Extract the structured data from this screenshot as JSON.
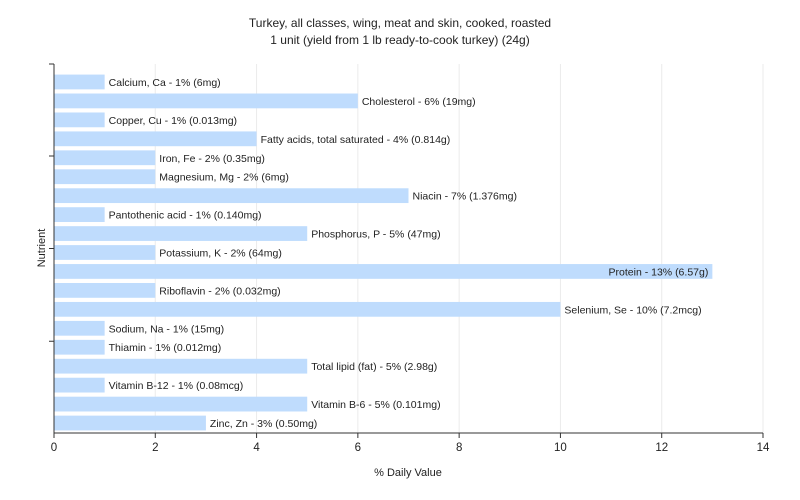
{
  "chart_data": {
    "type": "bar",
    "orientation": "horizontal",
    "title": "Turkey, all classes, wing, meat and skin, cooked, roasted",
    "subtitle": "1 unit (yield from 1 lb ready-to-cook turkey) (24g)",
    "xlabel": "% Daily Value",
    "ylabel": "Nutrient",
    "xlim": [
      0,
      14
    ],
    "xticks": [
      0,
      2,
      4,
      6,
      8,
      10,
      12,
      14
    ],
    "grid": true,
    "bar_color": "#bfdcfd",
    "categories": [
      "Calcium, Ca - 1% (6mg)",
      "Cholesterol - 6% (19mg)",
      "Copper, Cu - 1% (0.013mg)",
      "Fatty acids, total saturated - 4% (0.814g)",
      "Iron, Fe - 2% (0.35mg)",
      "Magnesium, Mg - 2% (6mg)",
      "Niacin - 7% (1.376mg)",
      "Pantothenic acid - 1% (0.140mg)",
      "Phosphorus, P - 5% (47mg)",
      "Potassium, K - 2% (64mg)",
      "Protein - 13% (6.57g)",
      "Riboflavin - 2% (0.032mg)",
      "Selenium, Se - 10% (7.2mcg)",
      "Sodium, Na - 1% (15mg)",
      "Thiamin - 1% (0.012mg)",
      "Total lipid (fat) - 5% (2.98g)",
      "Vitamin B-12 - 1% (0.08mcg)",
      "Vitamin B-6 - 5% (0.101mg)",
      "Zinc, Zn - 3% (0.50mg)"
    ],
    "values": [
      1,
      6,
      1,
      4,
      2,
      2,
      7,
      1,
      5,
      2,
      13,
      2,
      10,
      1,
      1,
      5,
      1,
      5,
      3
    ]
  }
}
